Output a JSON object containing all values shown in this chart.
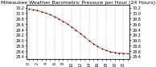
{
  "title": "Milwaukee Weather Barometric Pressure per Hour (24 Hours)",
  "hours": [
    0,
    1,
    2,
    3,
    4,
    5,
    6,
    7,
    8,
    9,
    10,
    11,
    12,
    13,
    14,
    15,
    16,
    17,
    18,
    19,
    20,
    21,
    22,
    23
  ],
  "pressure": [
    30.15,
    30.12,
    30.1,
    30.05,
    30.0,
    29.94,
    29.87,
    29.79,
    29.7,
    29.6,
    29.49,
    29.37,
    29.25,
    29.12,
    28.99,
    28.87,
    28.77,
    28.68,
    28.62,
    28.57,
    28.54,
    28.52,
    28.51,
    28.5
  ],
  "line_color": "#dd0000",
  "dot_color": "#000000",
  "background_color": "#ffffff",
  "grid_color": "#888888",
  "ylim_min": 28.3,
  "ylim_max": 30.3,
  "ytick_values": [
    28.4,
    28.6,
    28.8,
    29.0,
    29.2,
    29.4,
    29.6,
    29.8,
    30.0,
    30.2
  ],
  "title_fontsize": 4.5,
  "tick_fontsize": 3.5
}
